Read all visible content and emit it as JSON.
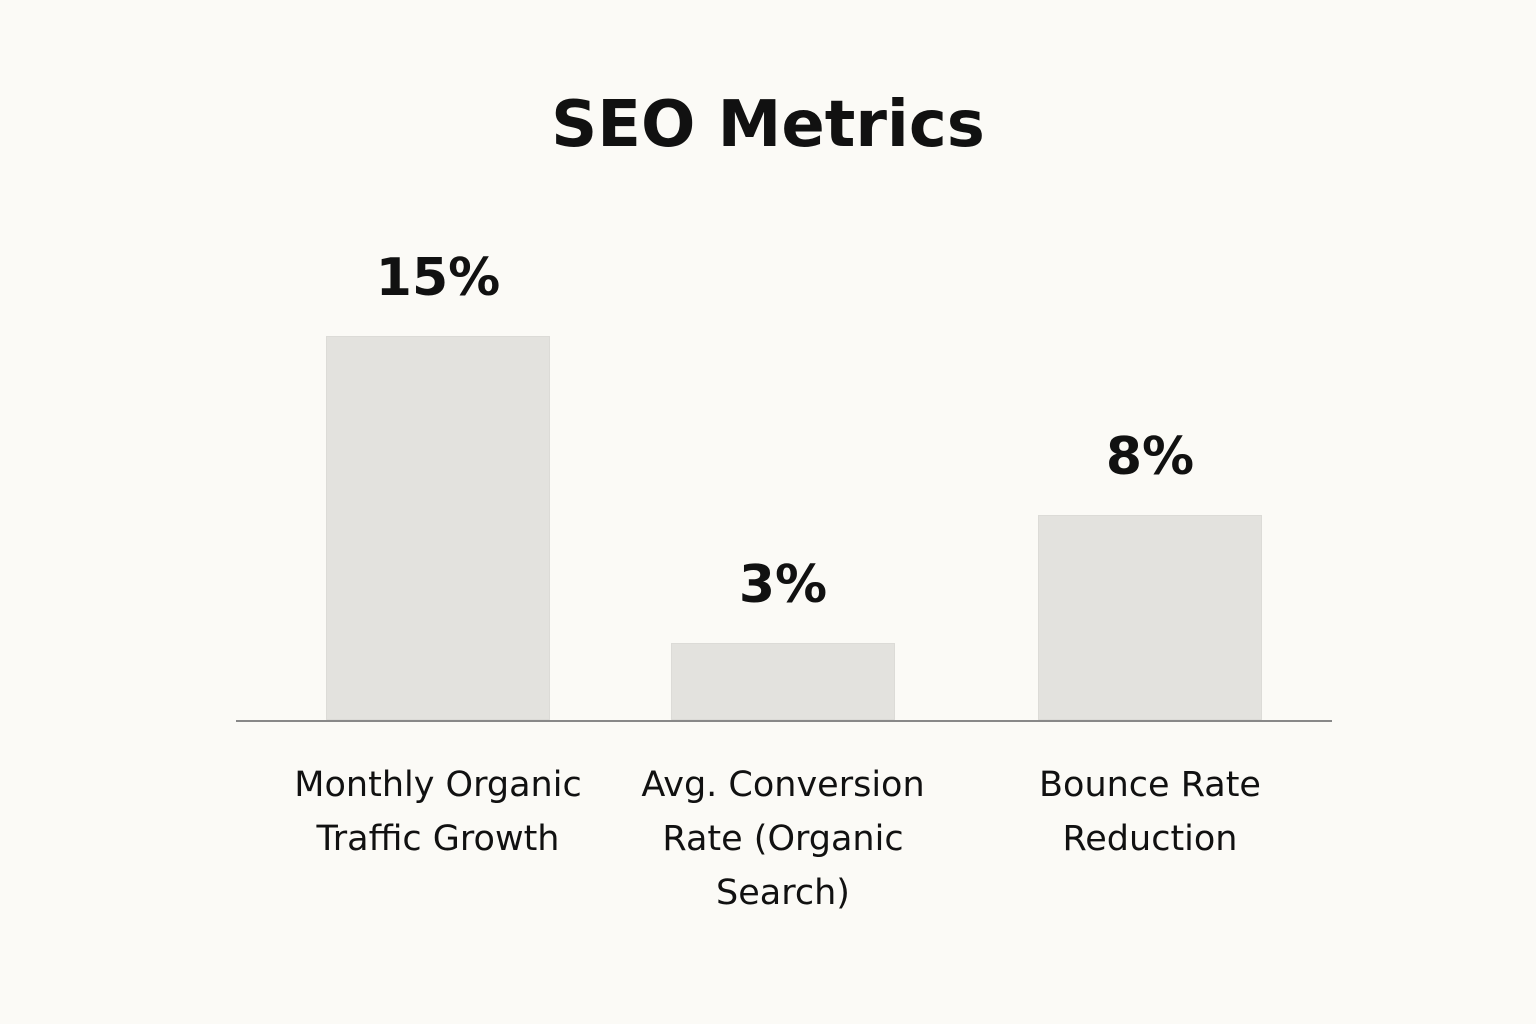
{
  "chart_data": {
    "type": "bar",
    "title": "SEO Metrics",
    "categories": [
      "Monthly Organic Traffic Growth",
      "Avg. Conversion Rate (Organic Search)",
      "Bounce Rate Reduction"
    ],
    "values": [
      15,
      3,
      8
    ],
    "value_labels": [
      "15%",
      "3%",
      "8%"
    ],
    "color": "#e3e2de"
  }
}
